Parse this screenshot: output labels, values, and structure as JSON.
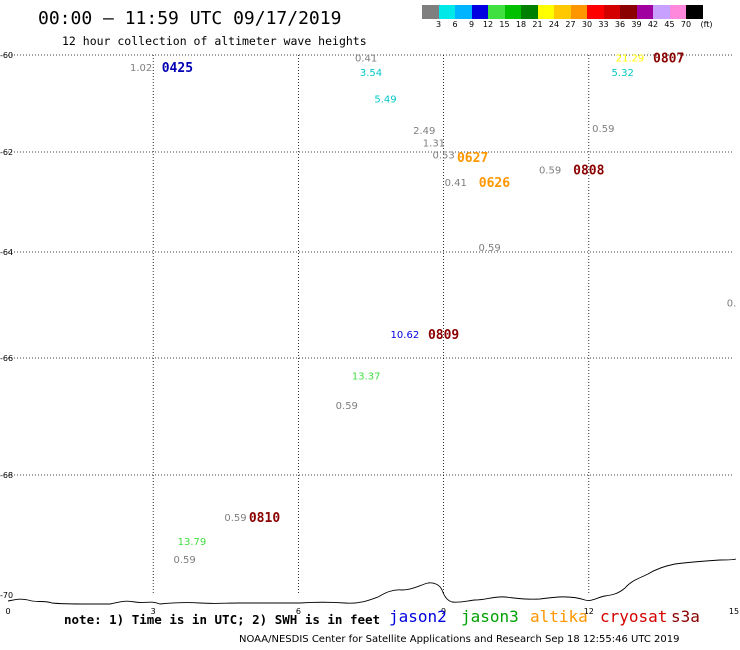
{
  "title": "00:00 – 11:59 UTC 09/17/2019",
  "subtitle": "12 hour collection of altimeter wave heights",
  "colorbar": {
    "colors": [
      "#7f7f7f",
      "#00e8e8",
      "#00b4ff",
      "#0000e0",
      "#40e040",
      "#00c000",
      "#008000",
      "#ffff00",
      "#ffc800",
      "#ff9600",
      "#ff0000",
      "#d40000",
      "#8b0000",
      "#a000a0",
      "#c8a0ff",
      "#ff88dd",
      "#000000"
    ],
    "labels": [
      "3",
      "6",
      "9",
      "12",
      "15",
      "18",
      "21",
      "24",
      "27",
      "30",
      "33",
      "36",
      "39",
      "42",
      "45",
      "70",
      "(ft)"
    ]
  },
  "axes": {
    "x_ticks": [
      "0",
      "3",
      "6",
      "9",
      "12",
      "15"
    ],
    "y_ticks": [
      "-60",
      "-62",
      "-64",
      "-66",
      "-68",
      "-70"
    ]
  },
  "map_data": {
    "swh": [
      {
        "value": "1.02",
        "color": "#7f7f7f",
        "lon": 2.75,
        "lat": -60.25
      },
      {
        "value": "0.41",
        "color": "#7f7f7f",
        "lon": 7.4,
        "lat": -60.05
      },
      {
        "value": "3.54",
        "color": "#00c8c8",
        "lon": 7.5,
        "lat": -60.35
      },
      {
        "value": "5.49",
        "color": "#00c8c8",
        "lon": 7.8,
        "lat": -60.9
      },
      {
        "value": "2.49",
        "color": "#7f7f7f",
        "lon": 8.6,
        "lat": -61.55
      },
      {
        "value": "1.31",
        "color": "#7f7f7f",
        "lon": 8.8,
        "lat": -61.8
      },
      {
        "value": "0.53",
        "color": "#7f7f7f",
        "lon": 9.0,
        "lat": -62.05
      },
      {
        "value": "0.41",
        "color": "#7f7f7f",
        "lon": 9.25,
        "lat": -62.6
      },
      {
        "value": "0.59",
        "color": "#7f7f7f",
        "lon": 9.95,
        "lat": -63.9
      },
      {
        "value": "0.59",
        "color": "#7f7f7f",
        "lon": 11.2,
        "lat": -62.35
      },
      {
        "value": "0.59",
        "color": "#7f7f7f",
        "lon": 12.3,
        "lat": -61.5
      },
      {
        "value": "21.29",
        "color": "#ffff00",
        "lon": 12.85,
        "lat": -60.05
      },
      {
        "value": "5.32",
        "color": "#00c8c8",
        "lon": 12.7,
        "lat": -60.35
      },
      {
        "value": "0.",
        "color": "#7f7f7f",
        "lon": 14.95,
        "lat": -64.95
      },
      {
        "value": "10.62",
        "color": "#0000e0",
        "lon": 8.2,
        "lat": -65.55
      },
      {
        "value": "13.37",
        "color": "#40e040",
        "lon": 7.4,
        "lat": -66.3
      },
      {
        "value": "0.59",
        "color": "#7f7f7f",
        "lon": 7.0,
        "lat": -66.8
      },
      {
        "value": "0.59",
        "color": "#7f7f7f",
        "lon": 4.7,
        "lat": -68.7
      },
      {
        "value": "13.79",
        "color": "#40e040",
        "lon": 3.8,
        "lat": -69.1
      },
      {
        "value": "0.59",
        "color": "#7f7f7f",
        "lon": 3.65,
        "lat": -69.4
      }
    ],
    "passes": [
      {
        "time": "0425",
        "color": "#0000b4",
        "lon": 3.5,
        "lat": -60.25
      },
      {
        "time": "0807",
        "color": "#8b0000",
        "lon": 13.65,
        "lat": -60.05
      },
      {
        "time": "0627",
        "color": "#ff9600",
        "lon": 9.6,
        "lat": -62.1
      },
      {
        "time": "0808",
        "color": "#8b0000",
        "lon": 12.0,
        "lat": -62.35
      },
      {
        "time": "0626",
        "color": "#ff9600",
        "lon": 10.05,
        "lat": -62.6
      },
      {
        "time": "0809",
        "color": "#8b0000",
        "lon": 9.0,
        "lat": -65.55
      },
      {
        "time": "0810",
        "color": "#8b0000",
        "lon": 5.3,
        "lat": -68.7
      }
    ]
  },
  "note": "note: 1) Time is in UTC; 2) SWH is in feet",
  "satellites": [
    {
      "name": "jason2",
      "color": "#0000e0"
    },
    {
      "name": "jason3",
      "color": "#00a000"
    },
    {
      "name": "altika",
      "color": "#ff9600"
    },
    {
      "name": "cryosat",
      "color": "#d40000"
    },
    {
      "name": "s3a",
      "color": "#8b0000"
    }
  ],
  "credit": "NOAA/NESDIS Center for Satellite Applications and Research    Sep 18 12:55:46 UTC 2019"
}
